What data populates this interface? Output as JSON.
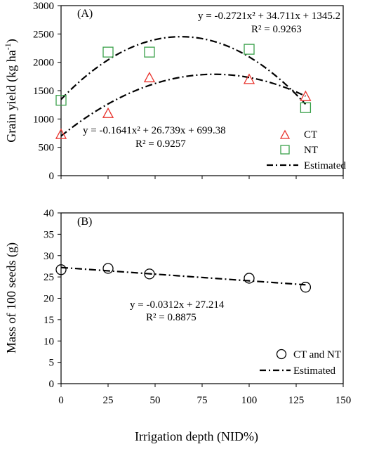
{
  "chart_data": [
    {
      "type": "scatter",
      "panel_label": "(A)",
      "ylabel": "Grain yield (kg ha",
      "ylabel_sup": "-1",
      "ylabel_close": ")",
      "xlim": [
        0,
        150
      ],
      "ylim": [
        0,
        3000
      ],
      "x_ticks": [
        0,
        25,
        50,
        75,
        100,
        125,
        150
      ],
      "y_ticks": [
        0,
        500,
        1000,
        1500,
        2000,
        2500,
        3000
      ],
      "series": [
        {
          "name": "CT",
          "marker": "triangle",
          "color": "#e8302a",
          "x": [
            0,
            25,
            47,
            100,
            130
          ],
          "y": [
            730,
            1100,
            1730,
            1700,
            1400
          ],
          "fit": {
            "a": -0.1641,
            "b": 26.739,
            "c": 699.38
          },
          "equation": "y = -0.1641x² + 26.739x + 699.38",
          "r2": "R² = 0.9257"
        },
        {
          "name": "NT",
          "marker": "square",
          "color": "#3aa04a",
          "x": [
            0,
            25,
            47,
            100,
            130
          ],
          "y": [
            1330,
            2180,
            2180,
            2230,
            1200
          ],
          "fit": {
            "a": -0.2721,
            "b": 34.711,
            "c": 1345.2
          },
          "equation": "y = -0.2721x² + 34.711x + 1345.2",
          "r2": "R² = 0.9263"
        }
      ],
      "legend": {
        "placement": "bottom-right",
        "items": [
          "CT",
          "NT",
          "Estimated"
        ]
      }
    },
    {
      "type": "scatter",
      "panel_label": "(B)",
      "xlabel": "Irrigation depth (NID%)",
      "ylabel": "Mass of 100 seeds (g)",
      "xlim": [
        0,
        150
      ],
      "ylim": [
        0,
        40
      ],
      "x_ticks": [
        0,
        25,
        50,
        75,
        100,
        125,
        150
      ],
      "y_ticks": [
        0,
        5,
        10,
        15,
        20,
        25,
        30,
        35,
        40
      ],
      "series": [
        {
          "name": "CT and NT",
          "marker": "circle",
          "color": "#000000",
          "x": [
            0,
            25,
            47,
            100,
            130
          ],
          "y": [
            26.7,
            27.0,
            25.7,
            24.7,
            22.6
          ],
          "fit": {
            "a": 0,
            "b": -0.0312,
            "c": 27.214
          },
          "equation": "y = -0.0312x + 27.214",
          "r2": "R² = 0.8875"
        }
      ],
      "legend": {
        "placement": "bottom-right",
        "items": [
          "CT and NT",
          "Estimated"
        ]
      }
    }
  ]
}
